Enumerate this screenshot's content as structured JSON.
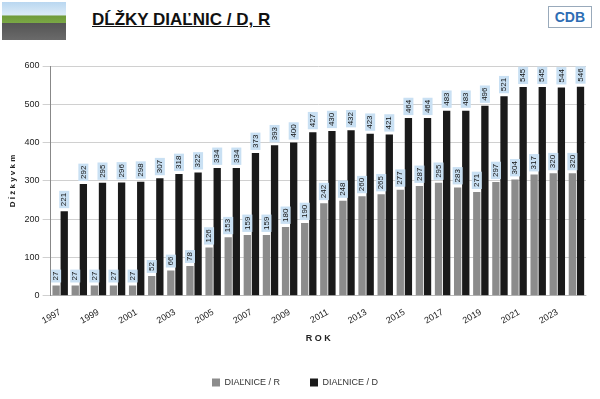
{
  "chart_data": {
    "type": "bar",
    "title": "DĹŽKY DIAĽNIC / D, R",
    "x_label": "R O K",
    "y_label": "D ĺ ž k y v k m",
    "categories": [
      "1997",
      null,
      "1999",
      null,
      "2001",
      null,
      "2003",
      null,
      "2005",
      null,
      "2007",
      null,
      "2009",
      null,
      "2011",
      null,
      "2013",
      null,
      "2015",
      null,
      "2017",
      null,
      "2019",
      null,
      "2021",
      null,
      "2023",
      null
    ],
    "series": [
      {
        "name": "DIAĽNICE / R",
        "color": "#8c8c8c",
        "values": [
          27,
          27,
          27,
          27,
          27,
          52,
          66,
          78,
          126,
          153,
          159,
          159,
          180,
          190,
          242,
          248,
          260,
          265,
          277,
          287,
          295,
          283,
          271,
          297,
          304,
          317,
          320,
          320
        ]
      },
      {
        "name": "DIAĽNICE / D",
        "color": "#1a1a1a",
        "values": [
          221,
          292,
          295,
          296,
          298,
          307,
          318,
          322,
          334,
          334,
          373,
          393,
          400,
          427,
          430,
          432,
          423,
          421,
          464,
          464,
          483,
          483,
          496,
          521,
          545,
          545,
          544,
          546
        ]
      }
    ],
    "ylim": [
      0,
      600
    ],
    "yticks": [
      0,
      100,
      200,
      300,
      400,
      500,
      600
    ],
    "grid": true,
    "legend": "bottom",
    "data_labels": true
  },
  "logo": "CDB"
}
